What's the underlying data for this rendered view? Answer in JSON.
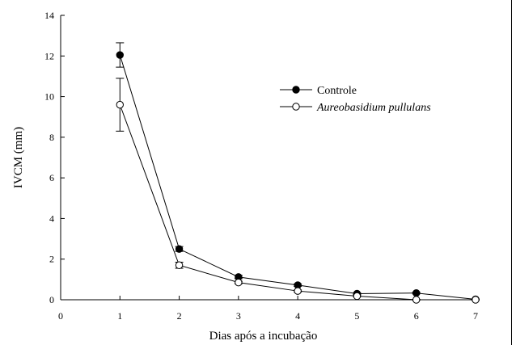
{
  "chart_data": {
    "type": "line",
    "title": "",
    "xlabel": "Dias após a incubação",
    "ylabel": "IVCM (mm)",
    "xlim": [
      0,
      7
    ],
    "ylim": [
      0,
      14
    ],
    "xticks": [
      "0",
      "1",
      "2",
      "3",
      "4",
      "5",
      "6",
      "7"
    ],
    "yticks": [
      "0",
      "2",
      "4",
      "6",
      "8",
      "10",
      "12",
      "14"
    ],
    "grid": false,
    "legend_position": "top-right",
    "x": [
      1,
      2,
      3,
      4,
      5,
      6,
      7
    ],
    "series": [
      {
        "name": "Controle",
        "marker": "filled-circle",
        "color": "#000000",
        "values": [
          12.05,
          2.5,
          1.12,
          0.72,
          0.3,
          0.33,
          0.02
        ],
        "error": [
          0.6,
          0.12,
          0.08,
          0.06,
          0.04,
          0.04,
          0.02
        ]
      },
      {
        "name": "Aureobasidium pullulans",
        "marker": "open-circle",
        "italic": true,
        "color": "#000000",
        "values": [
          9.6,
          1.7,
          0.85,
          0.43,
          0.18,
          0.0,
          0.0
        ],
        "error": [
          1.3,
          0.15,
          0.06,
          0.05,
          0.03,
          0.02,
          0.02
        ]
      }
    ]
  }
}
